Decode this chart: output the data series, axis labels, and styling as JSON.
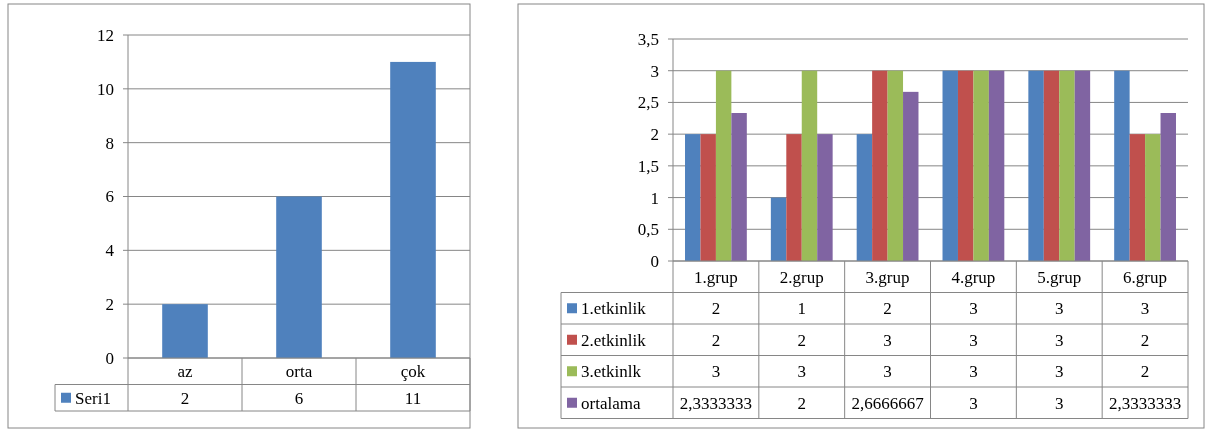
{
  "chart_data": [
    {
      "type": "bar",
      "categories": [
        "az",
        "orta",
        "çok"
      ],
      "series": [
        {
          "name": "Seri1",
          "color": "#4f81bd",
          "values": [
            2,
            6,
            11
          ],
          "value_labels": [
            "2",
            "6",
            "11"
          ]
        }
      ],
      "ylim": [
        0,
        12
      ],
      "yticks": [
        0,
        2,
        4,
        6,
        8,
        10,
        12
      ],
      "grid": "y",
      "legend": "bottom"
    },
    {
      "type": "bar",
      "categories": [
        "1.grup",
        "2.grup",
        "3.grup",
        "4.grup",
        "5.grup",
        "6.grup"
      ],
      "series": [
        {
          "name": "1.etkinlik",
          "color": "#4f81bd",
          "values": [
            2,
            1,
            2,
            3,
            3,
            3
          ],
          "value_labels": [
            "2",
            "1",
            "2",
            "3",
            "3",
            "3"
          ]
        },
        {
          "name": "2.etkinlik",
          "color": "#c0504d",
          "values": [
            2,
            2,
            3,
            3,
            3,
            2
          ],
          "value_labels": [
            "2",
            "2",
            "3",
            "3",
            "3",
            "2"
          ]
        },
        {
          "name": "3.etkinlk",
          "color": "#9bbb59",
          "values": [
            3,
            3,
            3,
            3,
            3,
            2
          ],
          "value_labels": [
            "3",
            "3",
            "3",
            "3",
            "3",
            "2"
          ]
        },
        {
          "name": "ortalama",
          "color": "#8064a2",
          "values": [
            2.3333333,
            2,
            2.6666667,
            3,
            3,
            2.3333333
          ],
          "value_labels": [
            "2,3333333",
            "2",
            "2,6666667",
            "3",
            "3",
            "2,3333333"
          ]
        }
      ],
      "ylim": [
        0,
        3.5
      ],
      "yticks": [
        0,
        {
          "value": 0.5,
          "label": "0,5"
        },
        1,
        {
          "value": 1.5,
          "label": "1,5"
        },
        2,
        {
          "value": 2.5,
          "label": "2,5"
        },
        3,
        {
          "value": 3.5,
          "label": "3,5"
        }
      ],
      "grid": "y",
      "legend": "bottom"
    }
  ]
}
